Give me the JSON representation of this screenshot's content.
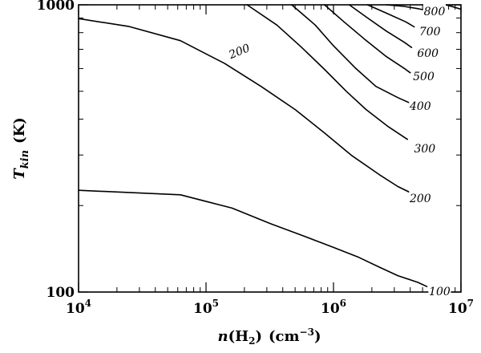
{
  "chart_data": {
    "type": "line",
    "subtype": "contour",
    "xscale": "log",
    "yscale": "log",
    "xlim": [
      10000,
      10000000
    ],
    "ylim": [
      100,
      1000
    ],
    "xlabel": {
      "var": "n",
      "open": "(H",
      "sub": "2",
      "close": ")",
      "units": "(cm",
      "sup": "−3",
      "units_close": ")"
    },
    "ylabel": {
      "var": "T",
      "sub": "kin",
      "units": "(K)"
    },
    "x_ticks": [
      {
        "value": 10000,
        "base": "10",
        "exp": "4"
      },
      {
        "value": 100000,
        "base": "10",
        "exp": "5"
      },
      {
        "value": 1000000,
        "base": "10",
        "exp": "6"
      },
      {
        "value": 10000000,
        "base": "10",
        "exp": "7"
      }
    ],
    "y_ticks": [
      {
        "value": 100,
        "label": "100"
      },
      {
        "value": 1000,
        "label": "1000"
      }
    ],
    "series": [
      {
        "contour_labels": [
          {
            "text": "100",
            "x": 6800000,
            "y": 100.8
          }
        ],
        "points": [
          [
            10000,
            226
          ],
          [
            63000,
            218
          ],
          [
            160000,
            196
          ],
          [
            320000,
            173
          ],
          [
            600000,
            156
          ],
          [
            1000000,
            143
          ],
          [
            1580000,
            132
          ],
          [
            2300000,
            122
          ],
          [
            3200000,
            114
          ],
          [
            4600000,
            108
          ],
          [
            5400000,
            104.5
          ]
        ]
      },
      {
        "contour_labels": [
          {
            "text": "200",
            "x": 4800000,
            "y": 212
          }
        ],
        "points": [
          [
            10000,
            895
          ],
          [
            25000,
            840
          ],
          [
            63000,
            750
          ],
          [
            140000,
            625
          ],
          [
            270000,
            520
          ],
          [
            500000,
            432
          ],
          [
            850000,
            358
          ],
          [
            1400000,
            298
          ],
          [
            2300000,
            256
          ],
          [
            3200000,
            233
          ],
          [
            4000000,
            222
          ]
        ]
      },
      {
        "contour_labels": [
          {
            "text": "200",
            "x": 182000,
            "y": 690
          }
        ],
        "points": []
      },
      {
        "contour_labels": [
          {
            "text": "300",
            "x": 5200000,
            "y": 316
          }
        ],
        "points": [
          [
            210000,
            1000
          ],
          [
            360000,
            850
          ],
          [
            560000,
            712
          ],
          [
            850000,
            596
          ],
          [
            1260000,
            500
          ],
          [
            1800000,
            432
          ],
          [
            2700000,
            376
          ],
          [
            3800000,
            340
          ]
        ]
      },
      {
        "contour_labels": [
          {
            "text": "400",
            "x": 4800000,
            "y": 445
          }
        ],
        "points": [
          [
            470000,
            1000
          ],
          [
            720000,
            850
          ],
          [
            1000000,
            720
          ],
          [
            1480000,
            603
          ],
          [
            2150000,
            520
          ],
          [
            3200000,
            475
          ],
          [
            3900000,
            457
          ]
        ]
      },
      {
        "contour_labels": [
          {
            "text": "500",
            "x": 5100000,
            "y": 565
          }
        ],
        "points": [
          [
            850000,
            1000
          ],
          [
            1200000,
            875
          ],
          [
            1750000,
            760
          ],
          [
            2600000,
            660
          ],
          [
            3600000,
            600
          ],
          [
            4000000,
            580
          ]
        ]
      },
      {
        "contour_labels": [
          {
            "text": "600",
            "x": 5500000,
            "y": 680
          }
        ],
        "points": [
          [
            1330000,
            1000
          ],
          [
            1850000,
            900
          ],
          [
            2600000,
            810
          ],
          [
            3600000,
            740
          ],
          [
            4100000,
            710
          ]
        ]
      },
      {
        "contour_labels": [
          {
            "text": "700",
            "x": 5700000,
            "y": 810
          }
        ],
        "points": [
          [
            1850000,
            1000
          ],
          [
            2600000,
            935
          ],
          [
            3700000,
            872
          ],
          [
            4300000,
            838
          ]
        ]
      },
      {
        "contour_labels": [
          {
            "text": "800",
            "x": 6200000,
            "y": 950
          }
        ],
        "points": [
          [
            2600000,
            1000
          ],
          [
            3600000,
            987
          ],
          [
            4700000,
            968
          ],
          [
            5000000,
            962
          ]
        ]
      },
      {
        "contour_labels": [],
        "points": [
          [
            7600000,
            1000
          ],
          [
            8600000,
            985
          ],
          [
            10000000,
            965
          ]
        ]
      }
    ]
  }
}
